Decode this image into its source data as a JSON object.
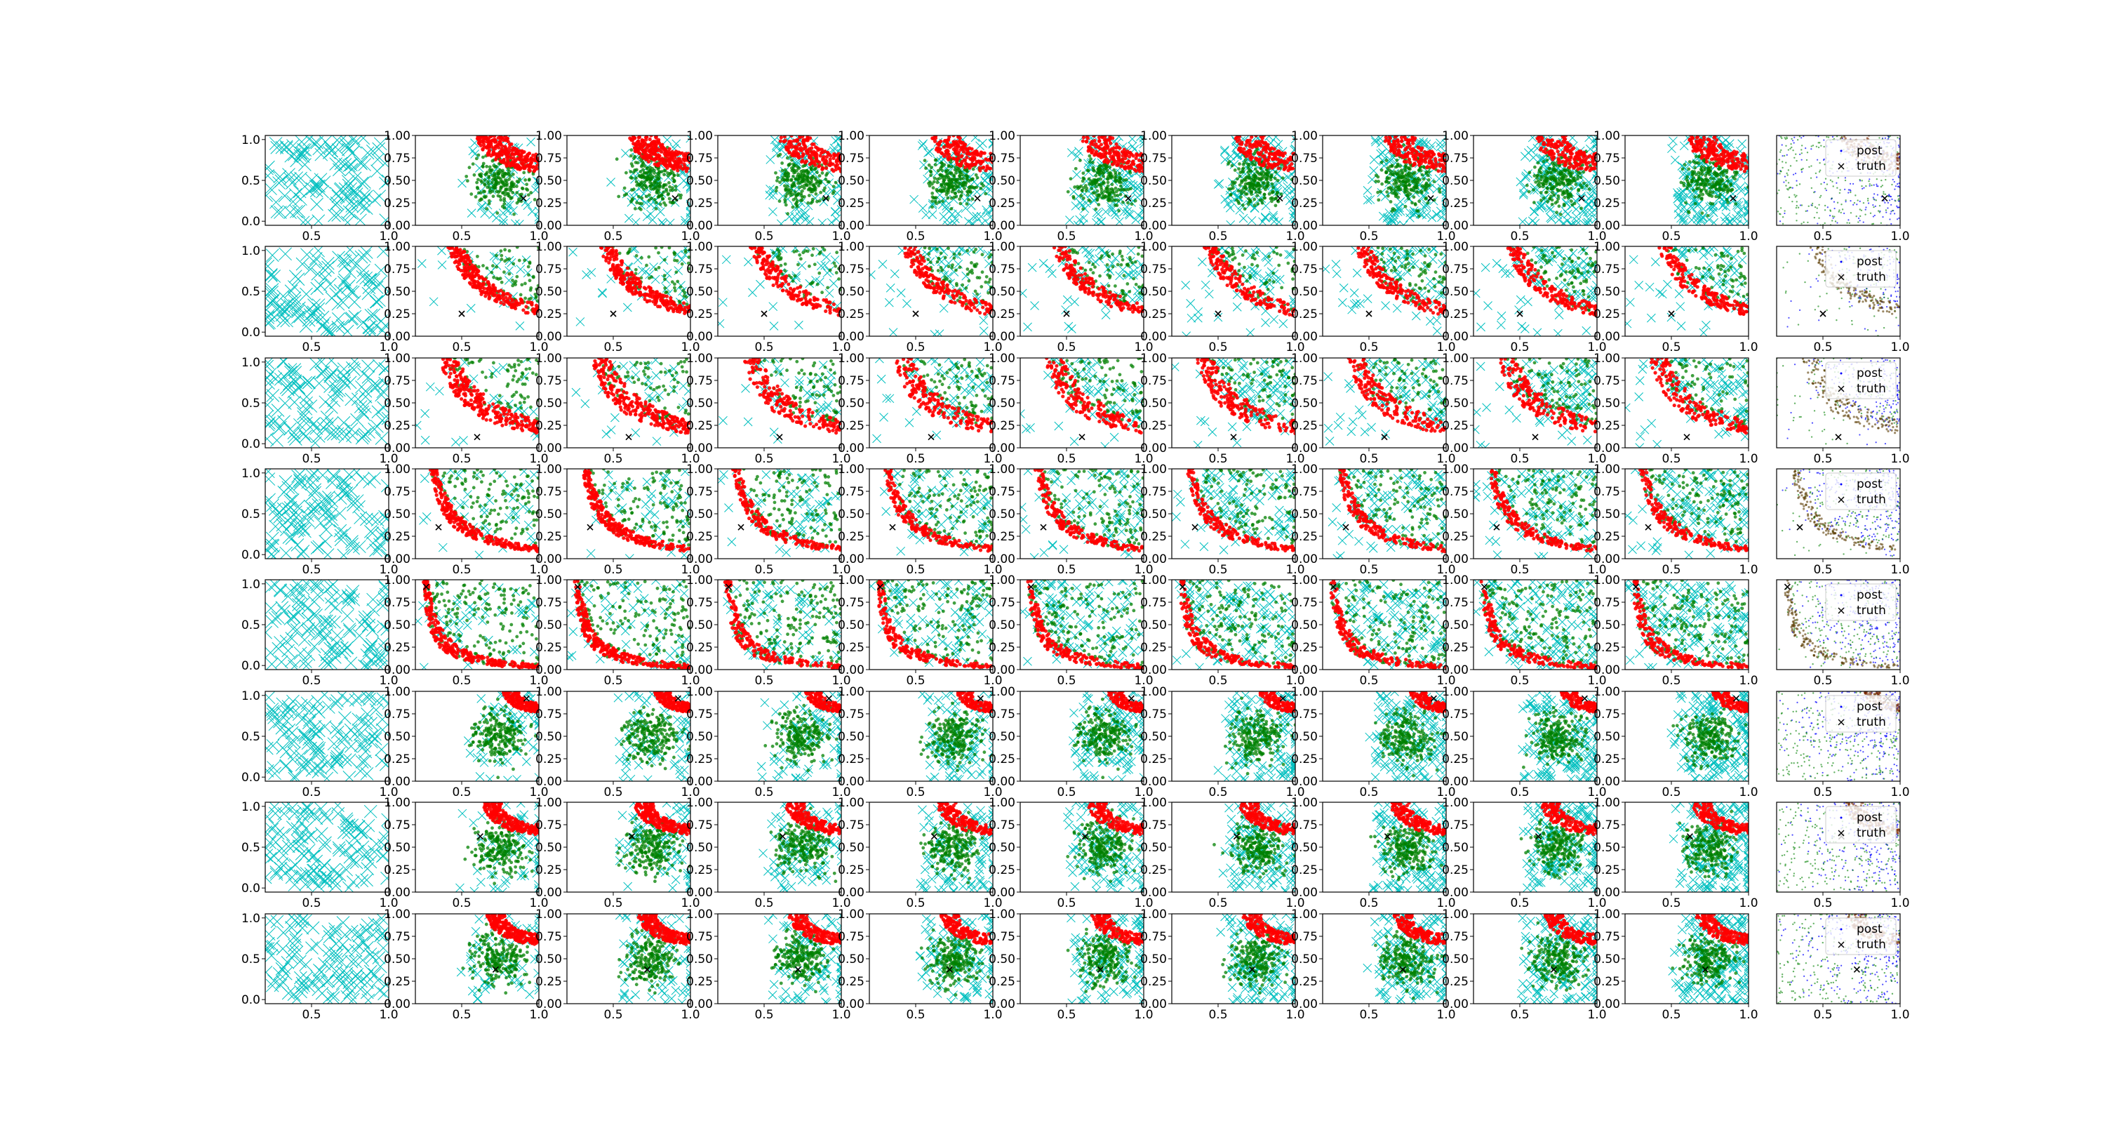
{
  "figure": {
    "rows": 8,
    "cols": 11
  },
  "colors": {
    "cyan": "#00bfbf",
    "green": "#008000",
    "red": "#ff0000",
    "blue": "#0000ff",
    "black": "#000000",
    "axis": "#000000",
    "background": "#ffffff"
  },
  "legend": {
    "labels": [
      "post",
      "truth"
    ],
    "placement": "upper right"
  },
  "chart_data": {
    "type": "scatter",
    "layout": "grid of 8 rows x 11 columns of scatter subplots",
    "axes": {
      "first_column": {
        "xlim": [
          0.2,
          1.0
        ],
        "ylim": [
          -0.05,
          1.05
        ],
        "xticks": [
          "0.5",
          "1.0"
        ],
        "yticks": [
          "0.0",
          "0.5",
          "1.0"
        ]
      },
      "middle_columns": {
        "xlim": [
          0.2,
          1.0
        ],
        "ylim": [
          0.0,
          1.0
        ],
        "xticks": [
          "0.5",
          "1.0"
        ],
        "yticks": [
          "0.00",
          "0.25",
          "0.50",
          "0.75",
          "1.00"
        ]
      },
      "last_column": {
        "xlim": [
          0.2,
          1.0
        ],
        "ylim": [
          0.0,
          1.0
        ],
        "xticks": [
          "0.5",
          "1.0"
        ],
        "yticks": []
      }
    },
    "series_by_column": {
      "first": [
        "cyan x markers (uniform samples)"
      ],
      "middle": [
        "cyan x markers (samples)",
        "green dots (accepted)",
        "red dots (band)"
      ],
      "last": [
        "blue dots (post)",
        "green dots",
        "black x (truth)"
      ]
    },
    "truth": [
      {
        "row": 1,
        "x": 0.9,
        "y": 0.3
      },
      {
        "row": 2,
        "x": 0.5,
        "y": 0.25
      },
      {
        "row": 3,
        "x": 0.6,
        "y": 0.12
      },
      {
        "row": 4,
        "x": 0.35,
        "y": 0.35
      },
      {
        "row": 5,
        "x": 0.27,
        "y": 0.92
      },
      {
        "row": 6,
        "x": 0.92,
        "y": 0.92
      },
      {
        "row": 7,
        "x": 0.62,
        "y": 0.62
      },
      {
        "row": 8,
        "x": 0.72,
        "y": 0.38
      }
    ],
    "bands": [
      {
        "row": 1,
        "kind": "corner",
        "a": 0.3,
        "w": 0.2
      },
      {
        "row": 2,
        "kind": "arc",
        "a": 0.6,
        "w": 0.1
      },
      {
        "row": 3,
        "kind": "arc",
        "a": 0.5,
        "w": 0.12
      },
      {
        "row": 4,
        "kind": "arc",
        "a": 0.28,
        "w": 0.05
      },
      {
        "row": 5,
        "kind": "arc",
        "a": 0.15,
        "w": 0.04
      },
      {
        "row": 6,
        "kind": "corner",
        "a": 0.18,
        "w": 0.1
      },
      {
        "row": 7,
        "kind": "corner",
        "a": 0.3,
        "w": 0.12
      },
      {
        "row": 8,
        "kind": "corner",
        "a": 0.28,
        "w": 0.12
      }
    ],
    "grid": false
  }
}
